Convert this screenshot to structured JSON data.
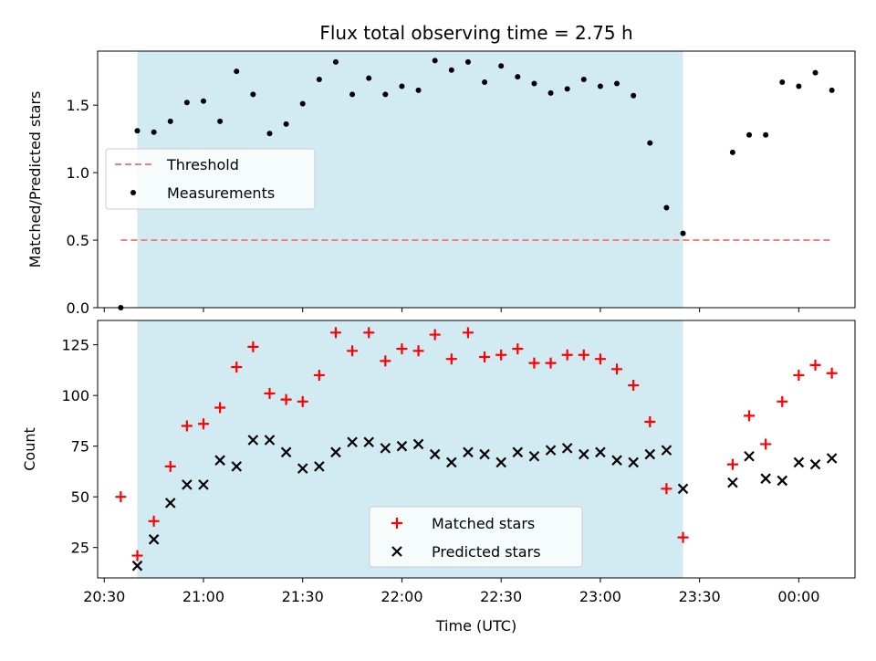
{
  "chart_data": {
    "title": "Flux total observing time = 2.75 h",
    "xlabel": "Time (UTC)",
    "x_unit": "HH:MM (UTC)",
    "xlim": [
      "20:28",
      "00:17"
    ],
    "x_ticks": [
      "20:30",
      "21:00",
      "21:30",
      "22:00",
      "22:30",
      "23:00",
      "23:30",
      "00:00"
    ],
    "shaded_interval": [
      "20:40",
      "23:25"
    ],
    "colors": {
      "shade": "#add8e6",
      "threshold": "#f08080",
      "measurements": "#000000",
      "matched": "#ff0000",
      "predicted": "#000000"
    },
    "panels": [
      {
        "type": "scatter",
        "ylabel": "Matched/Predicted stars",
        "ylim": [
          0,
          1.9
        ],
        "y_ticks": [
          "0.0",
          "0.5",
          "1.0",
          "1.5"
        ],
        "legend": {
          "position": "center-left",
          "entries": [
            "Threshold",
            "Measurements"
          ]
        },
        "threshold": {
          "name": "Threshold",
          "y": 0.5,
          "x_start": "20:35",
          "x_end": "00:10"
        },
        "series": [
          {
            "name": "Measurements",
            "marker": "dot",
            "x": [
              "20:35",
              "20:40",
              "20:45",
              "20:50",
              "20:55",
              "21:00",
              "21:05",
              "21:10",
              "21:15",
              "21:20",
              "21:25",
              "21:30",
              "21:35",
              "21:40",
              "21:45",
              "21:50",
              "21:55",
              "22:00",
              "22:05",
              "22:10",
              "22:15",
              "22:20",
              "22:25",
              "22:30",
              "22:35",
              "22:40",
              "22:45",
              "22:50",
              "22:55",
              "23:00",
              "23:05",
              "23:10",
              "23:15",
              "23:20",
              "23:25",
              "23:40",
              "23:45",
              "23:50",
              "23:55",
              "00:00",
              "00:05",
              "00:10"
            ],
            "y": [
              0.0,
              1.31,
              1.3,
              1.38,
              1.52,
              1.53,
              1.38,
              1.75,
              1.58,
              1.29,
              1.36,
              1.51,
              1.69,
              1.82,
              1.58,
              1.7,
              1.58,
              1.64,
              1.61,
              1.83,
              1.76,
              1.82,
              1.67,
              1.79,
              1.71,
              1.66,
              1.59,
              1.62,
              1.69,
              1.64,
              1.66,
              1.57,
              1.22,
              0.74,
              0.55,
              1.15,
              1.28,
              1.28,
              1.67,
              1.64,
              1.74,
              1.61
            ]
          }
        ]
      },
      {
        "type": "scatter",
        "ylabel": "Count",
        "ylim": [
          10,
          137
        ],
        "y_ticks": [
          "25",
          "50",
          "75",
          "100",
          "125"
        ],
        "legend": {
          "position": "lower-center",
          "entries": [
            "Matched stars",
            "Predicted stars"
          ]
        },
        "series": [
          {
            "name": "Matched stars",
            "marker": "plus",
            "x": [
              "20:35",
              "20:40",
              "20:45",
              "20:50",
              "20:55",
              "21:00",
              "21:05",
              "21:10",
              "21:15",
              "21:20",
              "21:25",
              "21:30",
              "21:35",
              "21:40",
              "21:45",
              "21:50",
              "21:55",
              "22:00",
              "22:05",
              "22:10",
              "22:15",
              "22:20",
              "22:25",
              "22:30",
              "22:35",
              "22:40",
              "22:45",
              "22:50",
              "22:55",
              "23:00",
              "23:05",
              "23:10",
              "23:15",
              "23:20",
              "23:25",
              "23:40",
              "23:45",
              "23:50",
              "23:55",
              "00:00",
              "00:05",
              "00:10"
            ],
            "y": [
              50,
              21,
              38,
              65,
              85,
              86,
              94,
              114,
              124,
              101,
              98,
              97,
              110,
              131,
              122,
              131,
              117,
              123,
              122,
              130,
              118,
              131,
              119,
              120,
              123,
              116,
              116,
              120,
              120,
              118,
              113,
              105,
              87,
              54,
              30,
              66,
              90,
              76,
              97,
              110,
              115,
              111
            ]
          },
          {
            "name": "Predicted stars",
            "marker": "x",
            "x": [
              "20:40",
              "20:45",
              "20:50",
              "20:55",
              "21:00",
              "21:05",
              "21:10",
              "21:15",
              "21:20",
              "21:25",
              "21:30",
              "21:35",
              "21:40",
              "21:45",
              "21:50",
              "21:55",
              "22:00",
              "22:05",
              "22:10",
              "22:15",
              "22:20",
              "22:25",
              "22:30",
              "22:35",
              "22:40",
              "22:45",
              "22:50",
              "22:55",
              "23:00",
              "23:05",
              "23:10",
              "23:15",
              "23:20",
              "23:25",
              "23:40",
              "23:45",
              "23:50",
              "23:55",
              "00:00",
              "00:05",
              "00:10"
            ],
            "y": [
              16,
              29,
              47,
              56,
              56,
              68,
              65,
              78,
              78,
              72,
              64,
              65,
              72,
              77,
              77,
              74,
              75,
              76,
              71,
              67,
              72,
              71,
              67,
              72,
              70,
              73,
              74,
              71,
              72,
              68,
              67,
              71,
              73,
              54,
              57,
              70,
              59,
              58,
              67,
              66,
              69
            ]
          }
        ]
      }
    ]
  }
}
